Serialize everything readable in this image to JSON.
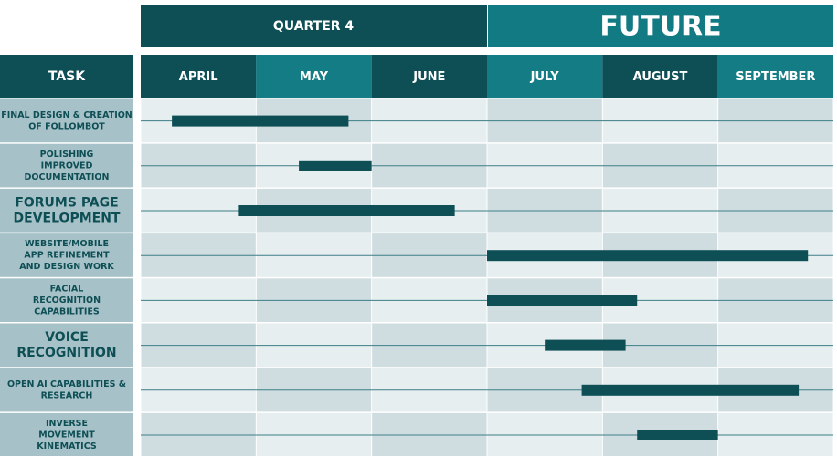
{
  "header": {
    "quarter_label": "QUARTER 4",
    "future_label": "FUTURE",
    "task_label": "TASK"
  },
  "colors": {
    "header_dark": "#0e4f55",
    "header_teal": "#137c84",
    "future_band": "#127a82",
    "task_cell": "#a6c2c8",
    "grid_light": "#e6eef0",
    "grid_dark": "#cfdde1",
    "bar": "#0e4f55",
    "line": "#3c7e86"
  },
  "chart_data": {
    "type": "gantt",
    "x": {
      "unit": "month",
      "categories": [
        "APRIL",
        "MAY",
        "JUNE",
        "JULY",
        "AUGUST",
        "SEPTEMBER"
      ],
      "range": [
        0,
        6
      ]
    },
    "groups": [
      {
        "label": "QUARTER 4",
        "months": [
          "APRIL",
          "MAY",
          "JUNE"
        ]
      },
      {
        "label": "FUTURE",
        "months": [
          "JULY",
          "AUGUST",
          "SEPTEMBER"
        ]
      }
    ],
    "tasks": [
      {
        "lines": [
          "FINAL DESIGN & CREATION",
          "OF FOLLOMBOT"
        ],
        "start": 0.27,
        "end": 1.8
      },
      {
        "lines": [
          "POLISHING",
          "IMPROVED",
          "DOCUMENTATION"
        ],
        "start": 1.37,
        "end": 2.0
      },
      {
        "lines": [
          "FORUMS PAGE",
          "DEVELOPMENT"
        ],
        "start": 0.85,
        "end": 2.72
      },
      {
        "lines": [
          "WEBSITE/MOBILE",
          "APP REFINEMENT",
          "AND DESIGN WORK"
        ],
        "start": 3.0,
        "end": 5.78
      },
      {
        "lines": [
          "FACIAL",
          "RECOGNITION",
          "CAPABILITIES"
        ],
        "start": 3.0,
        "end": 4.3
      },
      {
        "lines": [
          "VOICE",
          "RECOGNITION"
        ],
        "start": 3.5,
        "end": 4.2
      },
      {
        "lines": [
          "OPEN AI CAPABILITIES &",
          "RESEARCH"
        ],
        "start": 3.82,
        "end": 5.7
      },
      {
        "lines": [
          "INVERSE",
          "MOVEMENT",
          "KINEMATICS"
        ],
        "start": 4.3,
        "end": 5.0
      }
    ]
  }
}
